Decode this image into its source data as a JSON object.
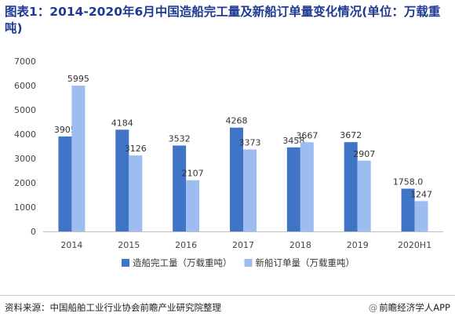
{
  "title": "图表1：2014-2020年6月中国造船完工量及新船订单量变化情况(单位：万载重吨)",
  "source": "资料来源：中国船舶工业行业协会前瞻产业研究院整理",
  "brand": "前瞻经济学人APP",
  "chart_data": {
    "type": "bar",
    "categories": [
      "2014",
      "2015",
      "2016",
      "2017",
      "2018",
      "2019",
      "2020H1"
    ],
    "series": [
      {
        "name": "造船完工量（万载重吨）",
        "values": [
          3905,
          4184,
          3532,
          4268,
          3458,
          3672,
          1758.0
        ],
        "labels": [
          "3905",
          "4184",
          "3532",
          "4268",
          "3458",
          "3672",
          "1758.0"
        ],
        "color": "#3f74c7"
      },
      {
        "name": "新船订单量（万载重吨）",
        "values": [
          5995,
          3126,
          2107,
          3373,
          3667,
          2907,
          1247
        ],
        "labels": [
          "5995",
          "3126",
          "2107",
          "3373",
          "3667",
          "2907",
          "1247"
        ],
        "color": "#9dbdf0"
      }
    ],
    "ylim": [
      0,
      7000
    ],
    "yticks": [
      0,
      1000,
      2000,
      3000,
      4000,
      5000,
      6000,
      7000
    ],
    "grid": false,
    "legend": "bottom"
  }
}
